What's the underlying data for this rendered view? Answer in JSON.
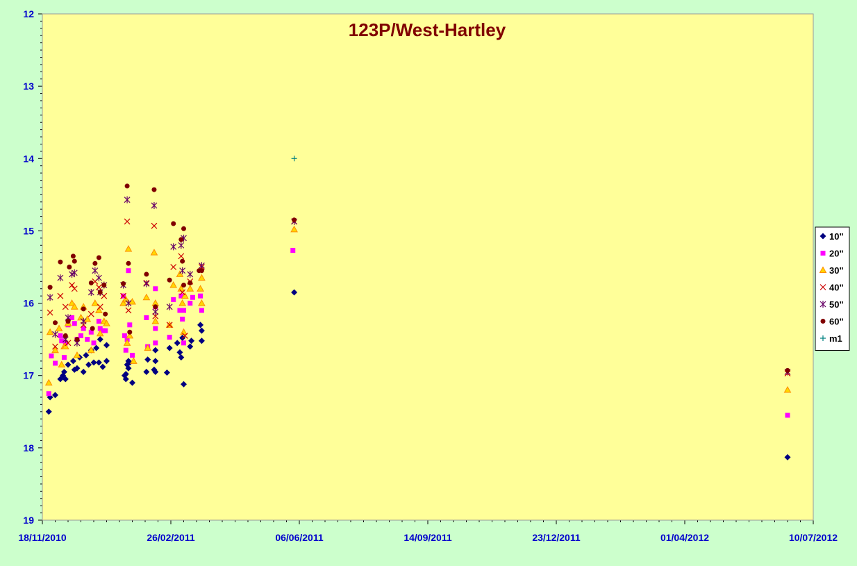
{
  "chart_data": {
    "type": "scatter",
    "title": "123P/West-Hartley",
    "xlabel": "",
    "ylabel": "",
    "x_axis": {
      "kind": "date",
      "min": "2010-11-18",
      "max": "2012-07-10",
      "tick_labels": [
        "18/11/2010",
        "26/02/2011",
        "06/06/2011",
        "14/09/2011",
        "23/12/2011",
        "01/04/2012",
        "10/07/2012"
      ]
    },
    "y_axis": {
      "min": 12,
      "max": 19,
      "reversed": true,
      "tick_labels": [
        "12",
        "13",
        "14",
        "15",
        "16",
        "17",
        "18",
        "19"
      ]
    },
    "grid": false,
    "legend_position": "right",
    "plot_background": "#ffff99",
    "page_background": "#ccffcc",
    "series": [
      {
        "name": "10\"",
        "marker": "diamond",
        "color": "#000080",
        "points": [
          [
            "2010-11-23",
            17.5
          ],
          [
            "2010-11-24",
            17.3
          ],
          [
            "2010-11-28",
            17.27
          ],
          [
            "2010-12-02",
            17.05
          ],
          [
            "2010-12-04",
            17.0
          ],
          [
            "2010-12-05",
            16.95
          ],
          [
            "2010-12-06",
            17.05
          ],
          [
            "2010-12-08",
            16.85
          ],
          [
            "2010-12-12",
            16.8
          ],
          [
            "2010-12-13",
            16.92
          ],
          [
            "2010-12-15",
            16.9
          ],
          [
            "2010-12-17",
            16.75
          ],
          [
            "2010-12-20",
            16.95
          ],
          [
            "2010-12-22",
            16.72
          ],
          [
            "2010-12-24",
            16.85
          ],
          [
            "2010-12-26",
            16.65
          ],
          [
            "2010-12-28",
            16.82
          ],
          [
            "2010-12-30",
            16.62
          ],
          [
            "2011-01-01",
            16.82
          ],
          [
            "2011-01-02",
            16.5
          ],
          [
            "2011-01-04",
            16.88
          ],
          [
            "2011-01-07",
            16.8
          ],
          [
            "2011-01-07",
            16.58
          ],
          [
            "2011-01-21",
            17.0
          ],
          [
            "2011-01-22",
            16.98
          ],
          [
            "2011-01-22",
            17.05
          ],
          [
            "2011-01-23",
            16.85
          ],
          [
            "2011-01-24",
            16.8
          ],
          [
            "2011-01-24",
            16.9
          ],
          [
            "2011-01-25",
            16.82
          ],
          [
            "2011-01-27",
            17.1
          ],
          [
            "2011-02-07",
            16.95
          ],
          [
            "2011-02-08",
            16.78
          ],
          [
            "2011-02-13",
            16.92
          ],
          [
            "2011-02-14",
            16.95
          ],
          [
            "2011-02-14",
            16.8
          ],
          [
            "2011-02-14",
            16.65
          ],
          [
            "2011-02-23",
            16.96
          ],
          [
            "2011-02-25",
            16.62
          ],
          [
            "2011-03-03",
            16.55
          ],
          [
            "2011-03-05",
            16.68
          ],
          [
            "2011-03-06",
            16.75
          ],
          [
            "2011-03-07",
            16.48
          ],
          [
            "2011-03-08",
            17.12
          ],
          [
            "2011-03-13",
            16.6
          ],
          [
            "2011-03-14",
            16.52
          ],
          [
            "2011-03-21",
            16.3
          ],
          [
            "2011-03-22",
            16.38
          ],
          [
            "2011-03-22",
            16.52
          ],
          [
            "2011-06-02",
            15.85
          ],
          [
            "2012-06-20",
            18.13
          ]
        ]
      },
      {
        "name": "20\"",
        "marker": "square",
        "color": "#ff00ff",
        "points": [
          [
            "2010-11-23",
            17.25
          ],
          [
            "2010-11-25",
            16.73
          ],
          [
            "2010-11-28",
            16.83
          ],
          [
            "2010-12-02",
            16.45
          ],
          [
            "2010-12-03",
            16.52
          ],
          [
            "2010-12-05",
            16.75
          ],
          [
            "2010-12-06",
            16.55
          ],
          [
            "2010-12-08",
            16.3
          ],
          [
            "2010-12-11",
            16.2
          ],
          [
            "2010-12-13",
            16.28
          ],
          [
            "2010-12-15",
            16.5
          ],
          [
            "2010-12-18",
            16.45
          ],
          [
            "2010-12-20",
            16.35
          ],
          [
            "2010-12-23",
            16.5
          ],
          [
            "2010-12-26",
            16.4
          ],
          [
            "2010-12-28",
            16.55
          ],
          [
            "2011-01-01",
            16.25
          ],
          [
            "2011-01-02",
            16.35
          ],
          [
            "2011-01-04",
            16.38
          ],
          [
            "2011-01-06",
            16.38
          ],
          [
            "2011-01-20",
            15.9
          ],
          [
            "2011-01-21",
            16.45
          ],
          [
            "2011-01-22",
            16.65
          ],
          [
            "2011-01-23",
            16.5
          ],
          [
            "2011-01-24",
            15.55
          ],
          [
            "2011-01-25",
            16.3
          ],
          [
            "2011-01-27",
            16.72
          ],
          [
            "2011-02-07",
            16.2
          ],
          [
            "2011-02-08",
            16.6
          ],
          [
            "2011-02-14",
            15.8
          ],
          [
            "2011-02-14",
            16.05
          ],
          [
            "2011-02-14",
            16.55
          ],
          [
            "2011-02-14",
            16.35
          ],
          [
            "2011-02-25",
            16.47
          ],
          [
            "2011-02-28",
            15.95
          ],
          [
            "2011-03-05",
            16.1
          ],
          [
            "2011-03-06",
            15.9
          ],
          [
            "2011-03-07",
            16.22
          ],
          [
            "2011-03-08",
            16.1
          ],
          [
            "2011-03-08",
            16.55
          ],
          [
            "2011-03-13",
            16.0
          ],
          [
            "2011-03-15",
            15.92
          ],
          [
            "2011-03-21",
            15.9
          ],
          [
            "2011-03-22",
            16.1
          ],
          [
            "2011-06-01",
            15.27
          ],
          [
            "2012-06-20",
            17.55
          ]
        ]
      },
      {
        "name": "30\"",
        "marker": "triangle",
        "color": "#ff8c00",
        "fill": "#ffd700",
        "points": [
          [
            "2010-11-23",
            17.1
          ],
          [
            "2010-11-24",
            16.4
          ],
          [
            "2010-11-28",
            16.65
          ],
          [
            "2010-12-01",
            16.35
          ],
          [
            "2010-12-03",
            16.85
          ],
          [
            "2010-12-05",
            16.6
          ],
          [
            "2010-12-06",
            16.6
          ],
          [
            "2010-12-08",
            16.28
          ],
          [
            "2010-12-11",
            16.0
          ],
          [
            "2010-12-13",
            16.05
          ],
          [
            "2010-12-15",
            16.72
          ],
          [
            "2010-12-18",
            16.2
          ],
          [
            "2010-12-20",
            16.05
          ],
          [
            "2010-12-23",
            16.22
          ],
          [
            "2010-12-26",
            16.65
          ],
          [
            "2010-12-29",
            16.0
          ],
          [
            "2011-01-01",
            16.1
          ],
          [
            "2011-01-02",
            16.42
          ],
          [
            "2011-01-05",
            16.25
          ],
          [
            "2011-01-07",
            16.28
          ],
          [
            "2011-01-20",
            16.0
          ],
          [
            "2011-01-22",
            15.95
          ],
          [
            "2011-01-23",
            16.55
          ],
          [
            "2011-01-24",
            15.25
          ],
          [
            "2011-01-25",
            16.45
          ],
          [
            "2011-01-27",
            15.98
          ],
          [
            "2011-01-28",
            16.8
          ],
          [
            "2011-02-07",
            15.92
          ],
          [
            "2011-02-08",
            16.62
          ],
          [
            "2011-02-13",
            15.3
          ],
          [
            "2011-02-14",
            16.0
          ],
          [
            "2011-02-14",
            16.25
          ],
          [
            "2011-02-25",
            16.3
          ],
          [
            "2011-02-28",
            15.75
          ],
          [
            "2011-03-05",
            15.6
          ],
          [
            "2011-03-06",
            15.8
          ],
          [
            "2011-03-07",
            16.0
          ],
          [
            "2011-03-08",
            16.4
          ],
          [
            "2011-03-09",
            15.9
          ],
          [
            "2011-03-13",
            15.8
          ],
          [
            "2011-03-21",
            15.8
          ],
          [
            "2011-03-22",
            15.65
          ],
          [
            "2011-03-22",
            16.0
          ],
          [
            "2011-06-02",
            14.98
          ],
          [
            "2012-06-20",
            17.2
          ]
        ]
      },
      {
        "name": "40\"",
        "marker": "x",
        "color": "#cc0000",
        "points": [
          [
            "2010-11-24",
            16.13
          ],
          [
            "2010-11-28",
            16.6
          ],
          [
            "2010-12-02",
            15.9
          ],
          [
            "2010-12-06",
            16.05
          ],
          [
            "2010-12-08",
            16.55
          ],
          [
            "2010-12-11",
            15.75
          ],
          [
            "2010-12-13",
            15.8
          ],
          [
            "2010-12-20",
            16.3
          ],
          [
            "2010-12-26",
            16.15
          ],
          [
            "2010-12-29",
            15.7
          ],
          [
            "2011-01-01",
            15.78
          ],
          [
            "2011-01-02",
            16.05
          ],
          [
            "2011-01-05",
            15.9
          ],
          [
            "2011-01-20",
            15.9
          ],
          [
            "2011-01-23",
            14.87
          ],
          [
            "2011-01-24",
            16.1
          ],
          [
            "2011-02-07",
            15.72
          ],
          [
            "2011-02-13",
            14.93
          ],
          [
            "2011-02-14",
            16.18
          ],
          [
            "2011-02-25",
            16.3
          ],
          [
            "2011-02-28",
            15.5
          ],
          [
            "2011-03-06",
            15.35
          ],
          [
            "2011-03-07",
            15.85
          ],
          [
            "2011-03-09",
            16.45
          ],
          [
            "2011-03-13",
            15.7
          ],
          [
            "2011-03-22",
            15.5
          ],
          [
            "2011-06-02",
            14.87
          ],
          [
            "2012-06-20",
            16.97
          ]
        ]
      },
      {
        "name": "50\"",
        "marker": "asterisk",
        "color": "#660066",
        "points": [
          [
            "2010-11-24",
            15.92
          ],
          [
            "2010-11-28",
            16.43
          ],
          [
            "2010-12-02",
            15.65
          ],
          [
            "2010-12-06",
            16.5
          ],
          [
            "2010-12-08",
            16.2
          ],
          [
            "2010-12-11",
            15.6
          ],
          [
            "2010-12-13",
            15.58
          ],
          [
            "2010-12-15",
            16.55
          ],
          [
            "2010-12-20",
            16.25
          ],
          [
            "2010-12-26",
            15.85
          ],
          [
            "2010-12-29",
            15.55
          ],
          [
            "2011-01-01",
            15.65
          ],
          [
            "2011-01-02",
            15.85
          ],
          [
            "2011-01-05",
            15.75
          ],
          [
            "2011-01-20",
            15.75
          ],
          [
            "2011-01-23",
            14.57
          ],
          [
            "2011-01-24",
            16.0
          ],
          [
            "2011-02-07",
            15.73
          ],
          [
            "2011-02-13",
            14.65
          ],
          [
            "2011-02-14",
            16.12
          ],
          [
            "2011-02-25",
            16.05
          ],
          [
            "2011-02-28",
            15.22
          ],
          [
            "2011-03-06",
            15.2
          ],
          [
            "2011-03-07",
            15.55
          ],
          [
            "2011-03-08",
            15.1
          ],
          [
            "2011-03-13",
            15.6
          ],
          [
            "2011-03-22",
            15.48
          ],
          [
            "2011-06-02",
            14.87
          ],
          [
            "2012-06-20",
            16.95
          ]
        ]
      },
      {
        "name": "60\"",
        "marker": "circle",
        "color": "#800000",
        "points": [
          [
            "2010-11-24",
            15.78
          ],
          [
            "2010-11-28",
            16.27
          ],
          [
            "2010-12-02",
            15.43
          ],
          [
            "2010-12-06",
            16.45
          ],
          [
            "2010-12-08",
            16.25
          ],
          [
            "2010-12-09",
            15.5
          ],
          [
            "2010-12-12",
            15.35
          ],
          [
            "2010-12-13",
            15.42
          ],
          [
            "2010-12-15",
            16.5
          ],
          [
            "2010-12-20",
            16.08
          ],
          [
            "2010-12-26",
            15.72
          ],
          [
            "2010-12-27",
            16.35
          ],
          [
            "2010-12-29",
            15.45
          ],
          [
            "2011-01-01",
            15.37
          ],
          [
            "2011-01-02",
            15.85
          ],
          [
            "2011-01-05",
            15.75
          ],
          [
            "2011-01-06",
            16.15
          ],
          [
            "2011-01-20",
            15.73
          ],
          [
            "2011-01-23",
            14.38
          ],
          [
            "2011-01-24",
            15.45
          ],
          [
            "2011-01-25",
            16.4
          ],
          [
            "2011-02-07",
            15.6
          ],
          [
            "2011-02-13",
            14.43
          ],
          [
            "2011-02-14",
            16.05
          ],
          [
            "2011-02-25",
            15.68
          ],
          [
            "2011-02-28",
            14.9
          ],
          [
            "2011-03-06",
            15.12
          ],
          [
            "2011-03-07",
            15.42
          ],
          [
            "2011-03-08",
            14.97
          ],
          [
            "2011-03-08",
            15.75
          ],
          [
            "2011-03-13",
            15.72
          ],
          [
            "2011-03-20",
            15.55
          ],
          [
            "2011-03-22",
            15.55
          ],
          [
            "2011-06-02",
            14.85
          ],
          [
            "2012-06-20",
            16.93
          ]
        ]
      },
      {
        "name": "m1",
        "marker": "plus",
        "color": "#008080",
        "points": [
          [
            "2011-06-02",
            14.0
          ]
        ]
      }
    ]
  }
}
